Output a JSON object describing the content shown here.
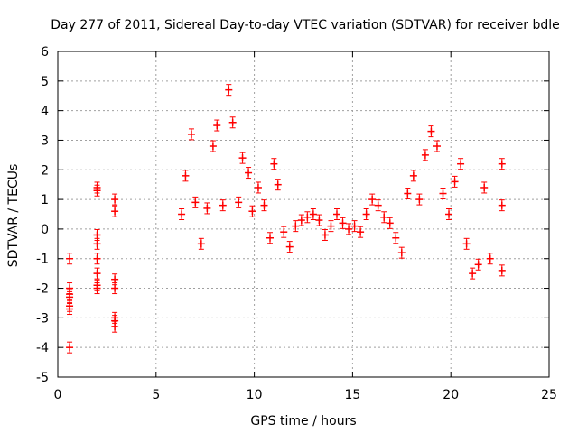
{
  "chart_data": {
    "type": "scatter",
    "title": "Day 277 of 2011, Sidereal Day-to-day VTEC variation (SDTVAR) for receiver bdle",
    "xlabel": "GPS time / hours",
    "ylabel": "SDTVAR / TECUs",
    "xlim": [
      0,
      25
    ],
    "ylim": [
      -5,
      6
    ],
    "x_ticks": [
      0,
      5,
      10,
      15,
      20,
      25
    ],
    "y_ticks": [
      -5,
      -4,
      -3,
      -2,
      -1,
      0,
      1,
      2,
      3,
      4,
      5,
      6
    ],
    "grid": true,
    "marker": "plus-with-errorbars",
    "colors": {
      "series": "#ff0000",
      "grid": "#a0a0a0",
      "axis": "#000000"
    },
    "series": [
      {
        "name": "SDTVAR",
        "x": [
          0.6,
          0.6,
          0.6,
          0.6,
          0.6,
          0.6,
          0.6,
          2.0,
          2.0,
          2.0,
          2.0,
          2.0,
          2.0,
          2.0,
          2.0,
          2.9,
          2.9,
          2.9,
          2.9,
          2.9,
          2.9,
          2.9,
          6.3,
          6.5,
          6.8,
          7.0,
          7.3,
          7.6,
          7.9,
          8.1,
          8.4,
          8.7,
          8.9,
          9.2,
          9.4,
          9.7,
          9.9,
          10.2,
          10.5,
          10.8,
          11.0,
          11.2,
          11.5,
          11.8,
          12.1,
          12.4,
          12.7,
          13.0,
          13.3,
          13.6,
          13.9,
          14.2,
          14.5,
          14.8,
          15.1,
          15.4,
          15.7,
          16.0,
          16.3,
          16.6,
          16.9,
          17.2,
          17.5,
          17.8,
          18.1,
          18.4,
          18.7,
          19.0,
          19.3,
          19.6,
          19.9,
          20.2,
          20.5,
          20.8,
          21.1,
          21.4,
          21.7,
          22.0,
          22.6,
          22.6,
          22.6
        ],
        "y": [
          -1.0,
          -2.0,
          -2.3,
          -2.7,
          -2.6,
          -4.0,
          -2.2,
          1.4,
          1.3,
          -0.2,
          -0.5,
          -1.0,
          -1.5,
          -2.0,
          -1.9,
          1.0,
          0.6,
          -1.7,
          -2.0,
          -3.0,
          -3.3,
          -3.1,
          0.5,
          1.8,
          3.2,
          0.9,
          -0.5,
          0.7,
          2.8,
          3.5,
          0.8,
          4.7,
          3.6,
          0.9,
          2.4,
          1.9,
          0.6,
          1.4,
          0.8,
          -0.3,
          2.2,
          1.5,
          -0.1,
          -0.6,
          0.1,
          0.3,
          0.4,
          0.5,
          0.3,
          -0.2,
          0.1,
          0.5,
          0.2,
          0.0,
          0.1,
          -0.1,
          0.5,
          1.0,
          0.8,
          0.4,
          0.2,
          -0.3,
          -0.8,
          1.2,
          1.8,
          1.0,
          2.5,
          3.3,
          2.8,
          1.2,
          0.5,
          1.6,
          2.2,
          -0.5,
          -1.5,
          -1.2,
          1.4,
          -1.0,
          2.2,
          0.8,
          -1.4
        ]
      }
    ]
  }
}
